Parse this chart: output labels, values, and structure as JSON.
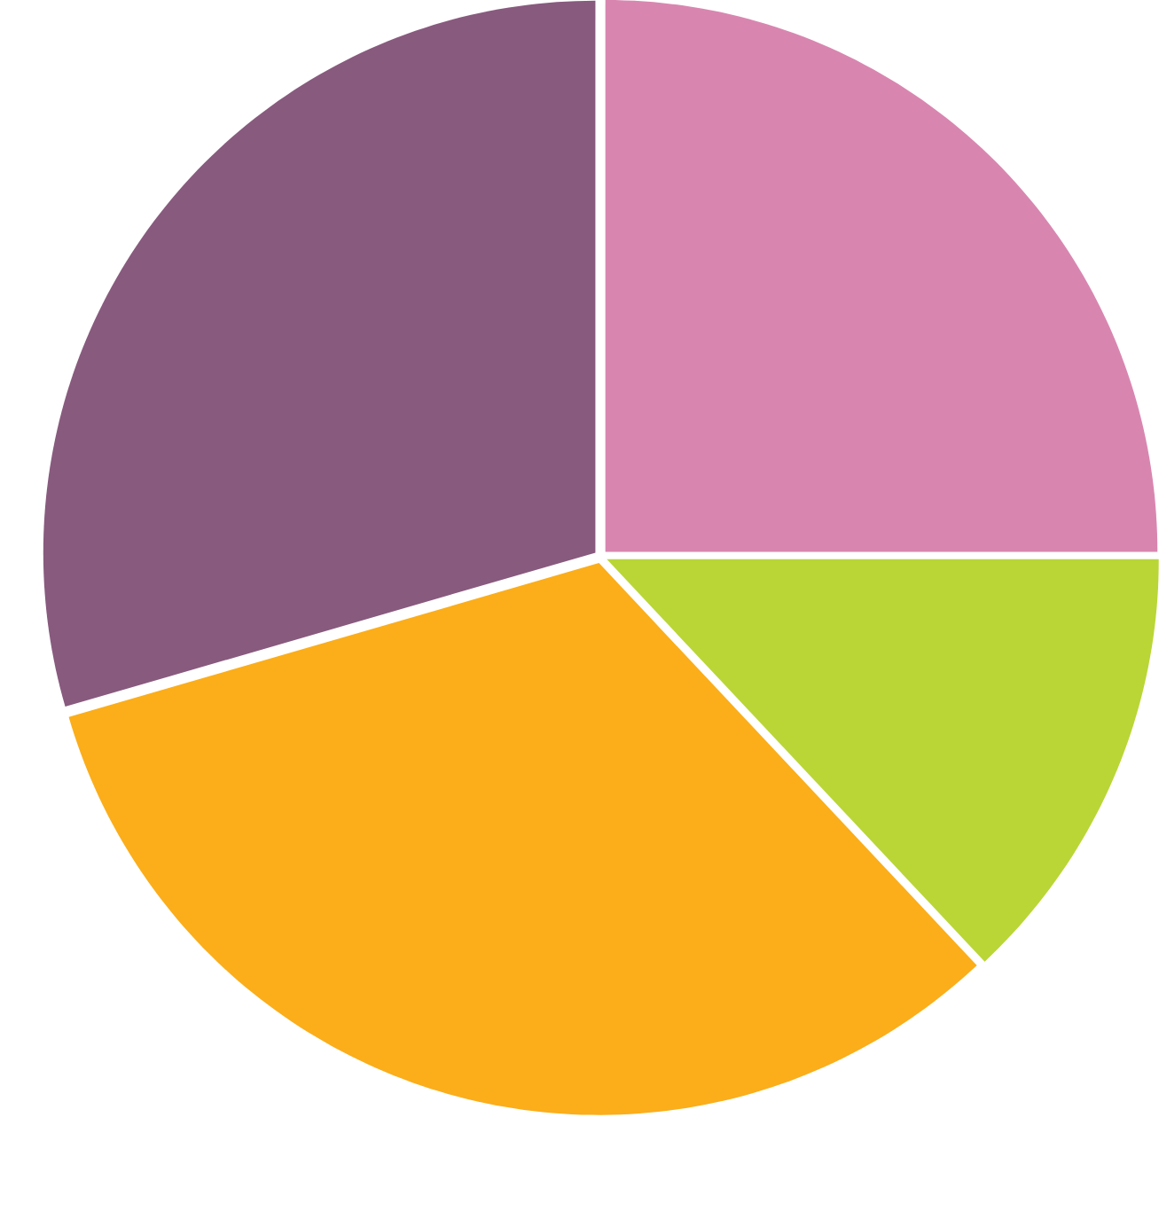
{
  "chart_data": {
    "type": "pie",
    "categories": [
      null,
      null,
      null,
      null
    ],
    "values": [
      25,
      13,
      32.5,
      29.5
    ],
    "colors": [
      "#d886b0",
      "#b9d636",
      "#fbae1a",
      "#885a7e"
    ]
  }
}
